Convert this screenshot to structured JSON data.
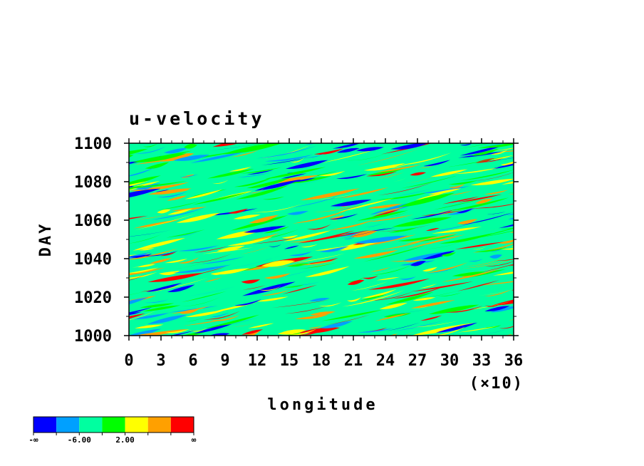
{
  "chart_data": {
    "type": "heatmap",
    "title": "u-velocity",
    "xlabel": "longitude",
    "ylabel": "DAY",
    "x_multiplier_label": "(×10)",
    "xlim": [
      0,
      36
    ],
    "ylim": [
      1000,
      1100
    ],
    "x_ticks": [
      "0",
      "3",
      "6",
      "9",
      "12",
      "15",
      "18",
      "21",
      "24",
      "27",
      "30",
      "33",
      "36"
    ],
    "y_ticks": [
      "1000",
      "1020",
      "1040",
      "1060",
      "1080",
      "1100"
    ],
    "grid": false,
    "colorbar": {
      "colors": [
        "#0000ff",
        "#00a0ff",
        "#00ffa0",
        "#00ff00",
        "#ffff00",
        "#ffa000",
        "#ff0000"
      ],
      "labels": [
        "-∞",
        "-6.00",
        "2.00",
        "∞"
      ]
    }
  }
}
